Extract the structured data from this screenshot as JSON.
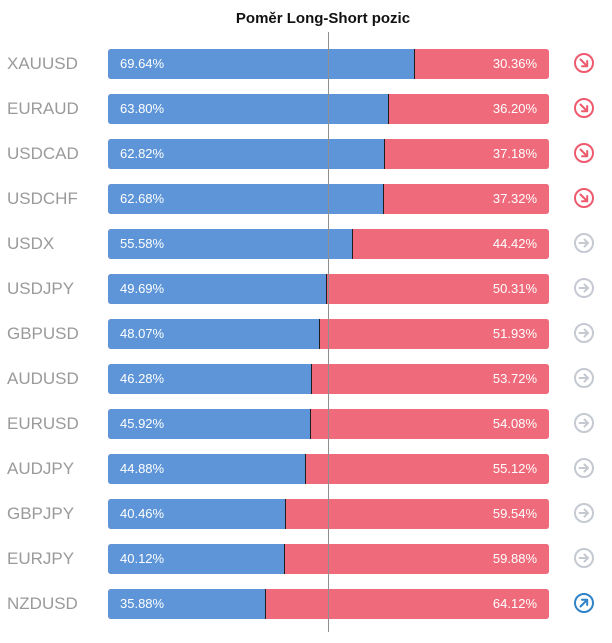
{
  "chart_data": {
    "type": "bar",
    "title": "Poměr Long-Short pozic",
    "categories": [
      "XAUUSD",
      "EURAUD",
      "USDCAD",
      "USDCHF",
      "USDX",
      "USDJPY",
      "GBPUSD",
      "AUDUSD",
      "EURUSD",
      "AUDJPY",
      "GBPJPY",
      "EURJPY",
      "NZDUSD"
    ],
    "series": [
      {
        "values": [
          69.64,
          63.8,
          62.82,
          62.68,
          55.58,
          49.69,
          48.07,
          46.28,
          45.92,
          44.88,
          40.46,
          40.12,
          35.88
        ]
      },
      {
        "values": [
          30.36,
          36.2,
          37.18,
          37.32,
          44.42,
          50.31,
          51.93,
          53.72,
          54.08,
          55.12,
          59.54,
          59.88,
          64.12
        ]
      }
    ],
    "value_labels_long": [
      "69.64%",
      "63.80%",
      "62.82%",
      "62.68%",
      "55.58%",
      "49.69%",
      "48.07%",
      "46.28%",
      "45.92%",
      "44.88%",
      "40.46%",
      "40.12%",
      "35.88%"
    ],
    "value_labels_short": [
      "30.36%",
      "36.20%",
      "37.18%",
      "37.32%",
      "44.42%",
      "50.31%",
      "51.93%",
      "53.72%",
      "54.08%",
      "55.12%",
      "59.54%",
      "59.88%",
      "64.12%"
    ],
    "stacked": true,
    "orientation": "horizontal",
    "xlim": [
      0,
      100
    ],
    "center_reference": 50,
    "signals": [
      "down",
      "down",
      "down",
      "down",
      "neutral",
      "neutral",
      "neutral",
      "neutral",
      "neutral",
      "neutral",
      "neutral",
      "neutral",
      "up"
    ],
    "colors": {
      "long": "#5d95d8",
      "short": "#ef6b7b",
      "down": "#ee5a6d",
      "up": "#2f83c8",
      "neutral": "#c5c9d1"
    }
  }
}
